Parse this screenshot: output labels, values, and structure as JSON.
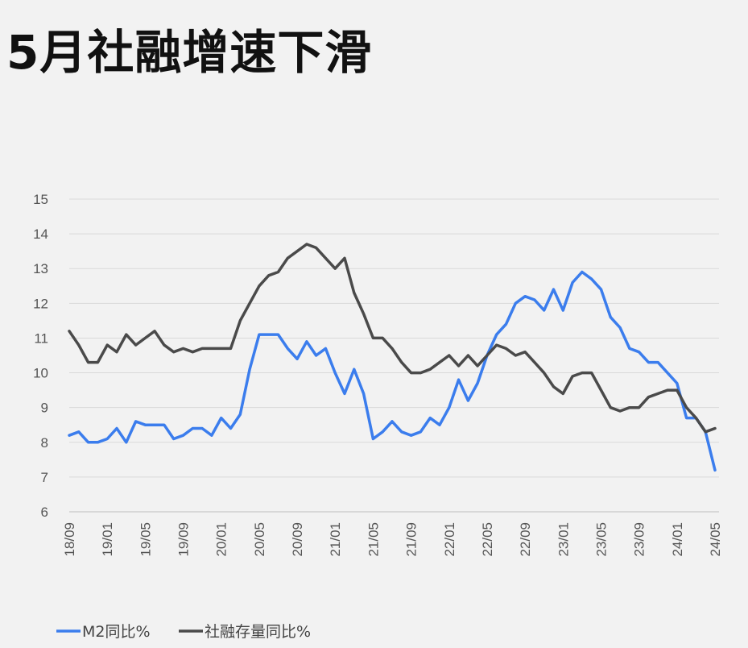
{
  "chart_data": {
    "type": "line",
    "title": "5月社融增速下滑",
    "xlabel": "",
    "ylabel": "",
    "ylim": [
      6,
      15
    ],
    "yticks": [
      6,
      7,
      8,
      9,
      10,
      11,
      12,
      13,
      14,
      15
    ],
    "x_tick_labels": [
      "18/09",
      "19/01",
      "19/05",
      "19/09",
      "20/01",
      "20/05",
      "20/09",
      "21/01",
      "21/05",
      "21/09",
      "22/01",
      "22/05",
      "22/09",
      "23/01",
      "23/05",
      "23/09",
      "24/01",
      "24/05"
    ],
    "x": [
      "18/09",
      "18/10",
      "18/11",
      "18/12",
      "19/01",
      "19/02",
      "19/03",
      "19/04",
      "19/05",
      "19/06",
      "19/07",
      "19/08",
      "19/09",
      "19/10",
      "19/11",
      "19/12",
      "20/01",
      "20/02",
      "20/03",
      "20/04",
      "20/05",
      "20/06",
      "20/07",
      "20/08",
      "20/09",
      "20/10",
      "20/11",
      "20/12",
      "21/01",
      "21/02",
      "21/03",
      "21/04",
      "21/05",
      "21/06",
      "21/07",
      "21/08",
      "21/09",
      "21/10",
      "21/11",
      "21/12",
      "22/01",
      "22/02",
      "22/03",
      "22/04",
      "22/05",
      "22/06",
      "22/07",
      "22/08",
      "22/09",
      "22/10",
      "22/11",
      "22/12",
      "23/01",
      "23/02",
      "23/03",
      "23/04",
      "23/05",
      "23/06",
      "23/07",
      "23/08",
      "23/09",
      "23/10",
      "23/11",
      "23/12",
      "24/01",
      "24/02",
      "24/03",
      "24/04",
      "24/05"
    ],
    "grid": true,
    "legend_position": "bottom-left",
    "series": [
      {
        "name": "M2同比%",
        "color": "#3b7ded",
        "values": [
          8.2,
          8.3,
          8.0,
          8.0,
          8.1,
          8.4,
          8.0,
          8.6,
          8.5,
          8.5,
          8.5,
          8.1,
          8.2,
          8.4,
          8.4,
          8.2,
          8.7,
          8.4,
          8.8,
          10.1,
          11.1,
          11.1,
          11.1,
          10.7,
          10.4,
          10.9,
          10.5,
          10.7,
          10.0,
          9.4,
          10.1,
          9.4,
          8.1,
          8.3,
          8.6,
          8.3,
          8.2,
          8.3,
          8.7,
          8.5,
          9.0,
          9.8,
          9.2,
          9.7,
          10.5,
          11.1,
          11.4,
          12.0,
          12.2,
          12.1,
          11.8,
          12.4,
          11.8,
          12.6,
          12.9,
          12.7,
          12.4,
          11.6,
          11.3,
          10.7,
          10.6,
          10.3,
          10.3,
          10.0,
          9.7,
          8.7,
          8.7,
          8.3,
          7.2
        ]
      },
      {
        "name": "社融存量同比%",
        "color": "#4a4a4a",
        "values": [
          11.2,
          10.8,
          10.3,
          10.3,
          10.8,
          10.6,
          11.1,
          10.8,
          11.0,
          11.2,
          10.8,
          10.6,
          10.7,
          10.6,
          10.7,
          10.7,
          10.7,
          10.7,
          11.5,
          12.0,
          12.5,
          12.8,
          12.9,
          13.3,
          13.5,
          13.7,
          13.6,
          13.3,
          13.0,
          13.3,
          12.3,
          11.7,
          11.0,
          11.0,
          10.7,
          10.3,
          10.0,
          10.0,
          10.1,
          10.3,
          10.5,
          10.2,
          10.5,
          10.2,
          10.5,
          10.8,
          10.7,
          10.5,
          10.6,
          10.3,
          10.0,
          9.6,
          9.4,
          9.9,
          10.0,
          10.0,
          9.5,
          9.0,
          8.9,
          9.0,
          9.0,
          9.3,
          9.4,
          9.5,
          9.5,
          9.0,
          8.7,
          8.3,
          8.4
        ]
      }
    ]
  }
}
